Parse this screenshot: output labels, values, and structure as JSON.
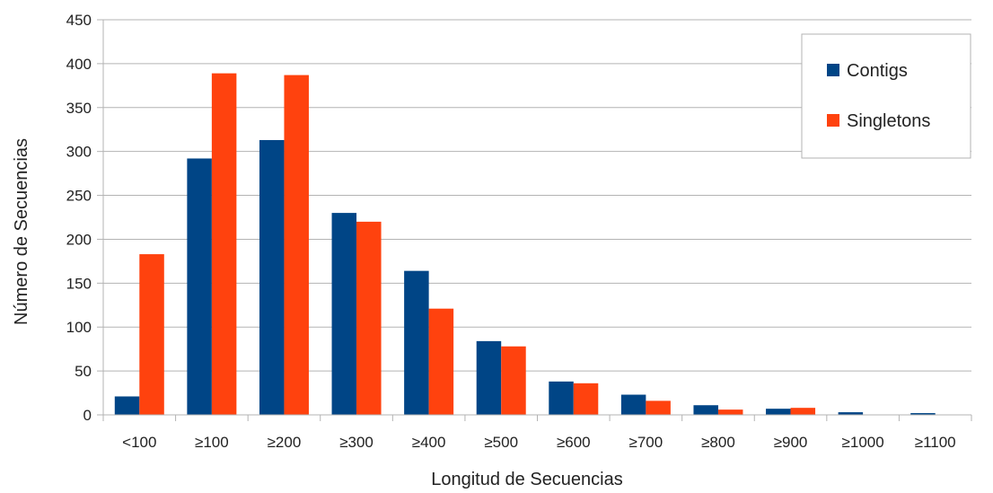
{
  "chart_data": {
    "type": "bar",
    "xlabel": "Longitud de Secuencias",
    "ylabel": "Número de Secuencias",
    "ylim": [
      0,
      450
    ],
    "yticks": [
      0,
      50,
      100,
      150,
      200,
      250,
      300,
      350,
      400,
      450
    ],
    "grid": true,
    "legend_position": "top-right",
    "categories": [
      "<100",
      "≥100",
      "≥200",
      "≥300",
      "≥400",
      "≥500",
      "≥600",
      "≥700",
      "≥800",
      "≥900",
      "≥1000",
      "≥1100"
    ],
    "series": [
      {
        "name": "Contigs",
        "color": "#004586",
        "values": [
          21,
          292,
          313,
          230,
          164,
          84,
          38,
          23,
          11,
          7,
          3,
          2
        ]
      },
      {
        "name": "Singletons",
        "color": "#ff420e",
        "values": [
          183,
          389,
          387,
          220,
          121,
          78,
          36,
          16,
          6,
          8,
          0,
          0
        ]
      }
    ]
  }
}
